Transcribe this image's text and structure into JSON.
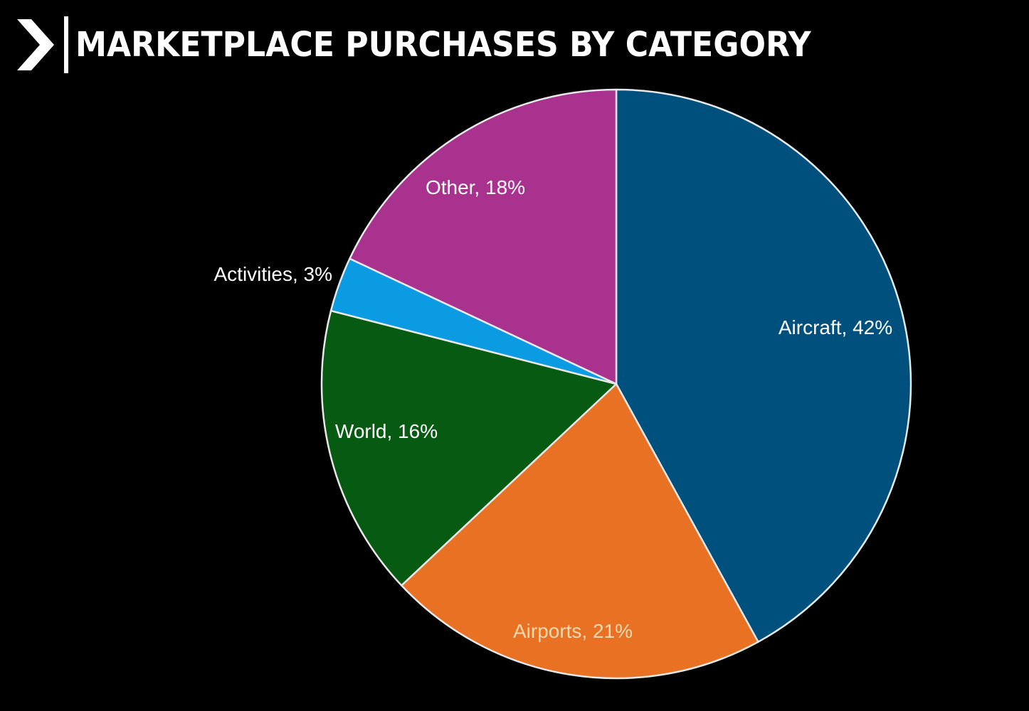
{
  "header": {
    "title": "MARKETPLACE PURCHASES BY CATEGORY",
    "logo_icon": "chevron-right-icon"
  },
  "colors": {
    "background": "#000000",
    "title": "#ffffff",
    "slice_border": "#e8e8e8"
  },
  "chart_data": {
    "type": "pie",
    "title": "MARKETPLACE PURCHASES BY CATEGORY",
    "start_angle_deg": 0,
    "direction": "clockwise",
    "slices": [
      {
        "label": "Aircraft",
        "value": 42,
        "text": "Aircraft, 42%",
        "color": "#00507e",
        "label_color": "#ffffff"
      },
      {
        "label": "Airports",
        "value": 21,
        "text": "Airports, 21%",
        "color": "#e97124",
        "label_color": "#f3d9b0"
      },
      {
        "label": "World",
        "value": 16,
        "text": "World, 16%",
        "color": "#075a12",
        "label_color": "#ffffff"
      },
      {
        "label": "Activities",
        "value": 3,
        "text": "Activities, 3%",
        "color": "#0a9be3",
        "label_color": "#ffffff"
      },
      {
        "label": "Other",
        "value": 18,
        "text": "Other, 18%",
        "color": "#a8328e",
        "label_color": "#ffffff"
      }
    ]
  }
}
